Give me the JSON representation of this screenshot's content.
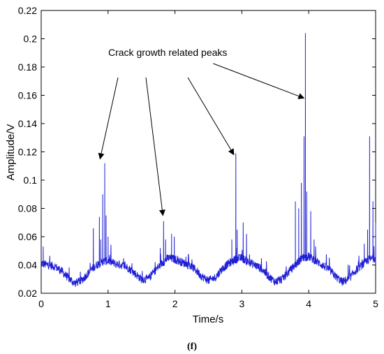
{
  "chart_data": {
    "type": "line",
    "xlabel": "Time/s",
    "ylabel": "Amplitude/V",
    "xlim": [
      0,
      5
    ],
    "ylim": [
      0.02,
      0.22
    ],
    "x_ticks": [
      0,
      1,
      2,
      3,
      4,
      5
    ],
    "y_ticks": [
      0.02,
      0.04,
      0.06,
      0.08,
      0.1,
      0.12,
      0.14,
      0.16,
      0.18,
      0.2,
      0.22
    ],
    "grid": false,
    "line_color": "#1f1fd6",
    "baseline": {
      "x": [
        0,
        0.1,
        0.2,
        0.3,
        0.4,
        0.5,
        0.6,
        0.7,
        0.8,
        0.9,
        1.0,
        1.1,
        1.2,
        1.3,
        1.4,
        1.5,
        1.6,
        1.7,
        1.8,
        1.9,
        2.0,
        2.1,
        2.2,
        2.3,
        2.4,
        2.5,
        2.6,
        2.7,
        2.8,
        2.9,
        3.0,
        3.1,
        3.2,
        3.3,
        3.4,
        3.5,
        3.6,
        3.7,
        3.8,
        3.9,
        4.0,
        4.1,
        4.2,
        4.3,
        4.4,
        4.5,
        4.6,
        4.7,
        4.8,
        4.9,
        5.0
      ],
      "y": [
        0.041,
        0.04,
        0.039,
        0.036,
        0.031,
        0.027,
        0.029,
        0.034,
        0.039,
        0.042,
        0.043,
        0.041,
        0.04,
        0.038,
        0.034,
        0.03,
        0.03,
        0.036,
        0.041,
        0.045,
        0.044,
        0.042,
        0.04,
        0.037,
        0.032,
        0.029,
        0.031,
        0.037,
        0.041,
        0.044,
        0.045,
        0.042,
        0.04,
        0.037,
        0.032,
        0.028,
        0.03,
        0.035,
        0.04,
        0.045,
        0.046,
        0.043,
        0.04,
        0.037,
        0.032,
        0.028,
        0.03,
        0.036,
        0.04,
        0.044,
        0.045
      ]
    },
    "peaks": {
      "x": [
        0.03,
        0.78,
        0.87,
        0.89,
        0.92,
        0.95,
        0.97,
        1.0,
        1.78,
        1.83,
        1.86,
        1.95,
        1.99,
        2.85,
        2.91,
        2.93,
        3.02,
        3.07,
        3.8,
        3.85,
        3.89,
        3.93,
        3.95,
        3.97,
        4.03,
        4.08,
        4.83,
        4.88,
        4.91,
        4.96,
        5.0
      ],
      "y": [
        0.053,
        0.066,
        0.074,
        0.058,
        0.09,
        0.112,
        0.075,
        0.06,
        0.052,
        0.071,
        0.058,
        0.062,
        0.06,
        0.058,
        0.119,
        0.065,
        0.07,
        0.062,
        0.085,
        0.08,
        0.098,
        0.131,
        0.204,
        0.092,
        0.078,
        0.058,
        0.055,
        0.065,
        0.131,
        0.085,
        0.07
      ]
    },
    "annotation": {
      "text": "Crack growth related peaks",
      "arrow_targets": [
        {
          "x": 0.88,
          "y": 0.115
        },
        {
          "x": 1.82,
          "y": 0.075
        },
        {
          "x": 2.88,
          "y": 0.118
        },
        {
          "x": 3.93,
          "y": 0.158
        }
      ]
    }
  },
  "caption": "(f)"
}
